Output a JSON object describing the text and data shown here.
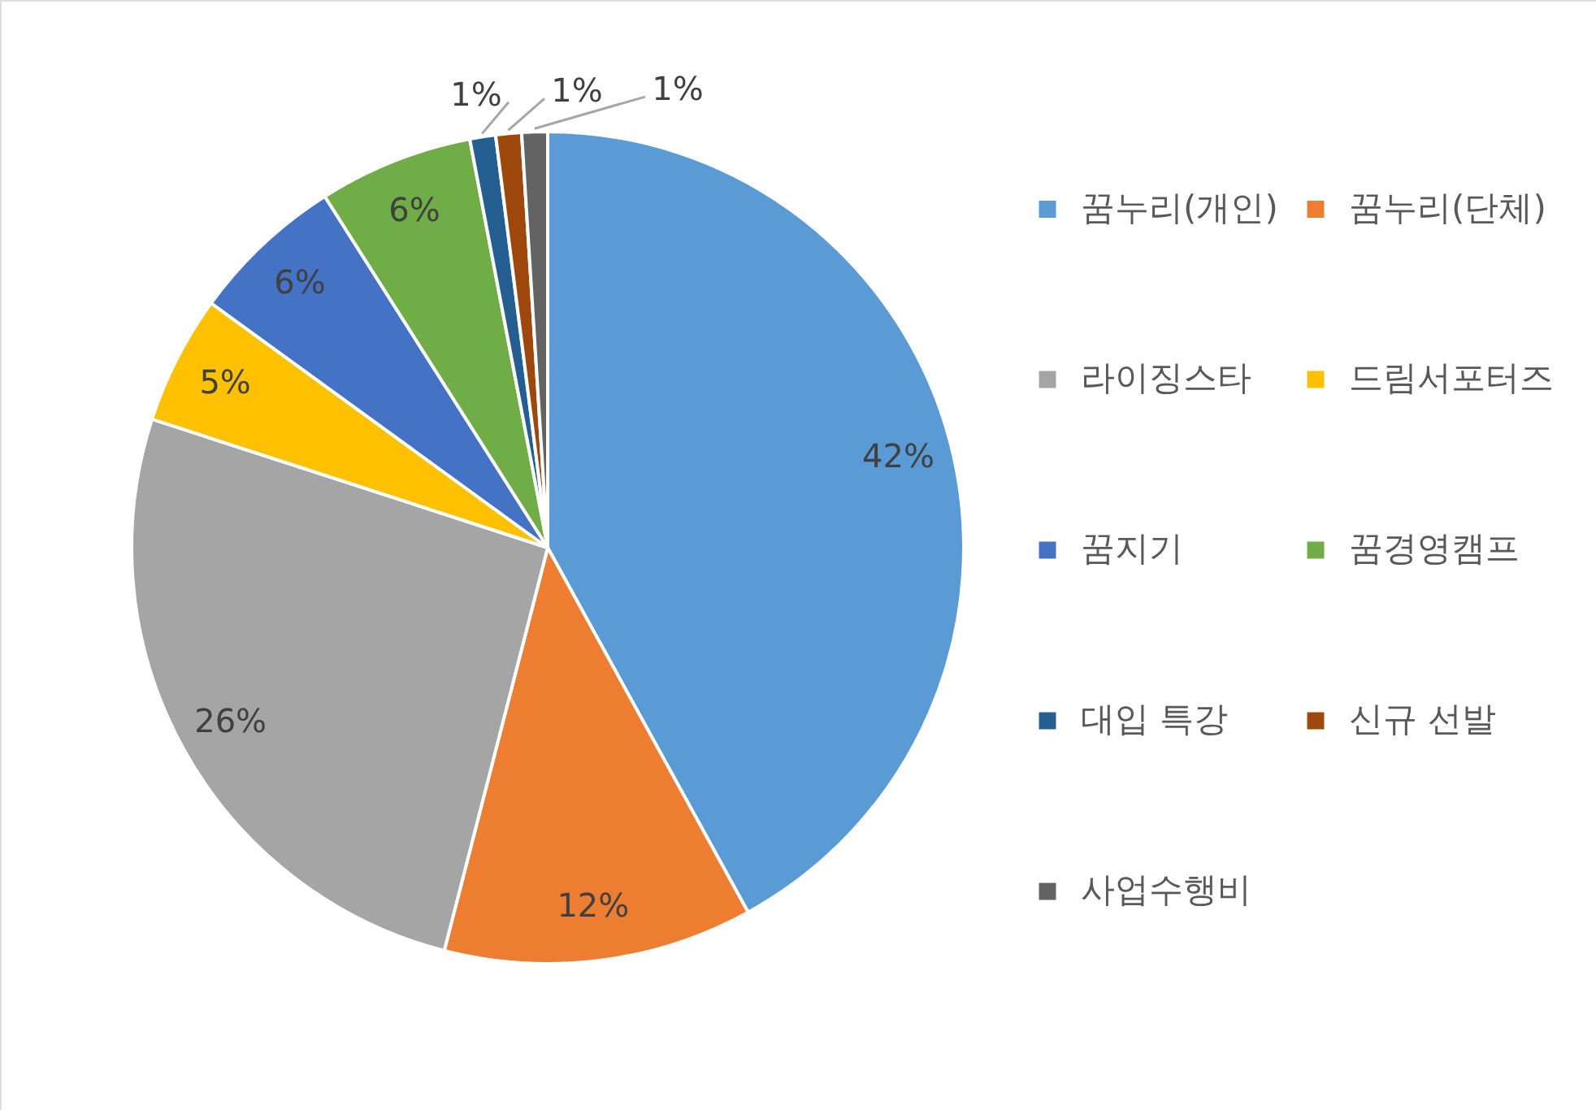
{
  "chart_data": {
    "type": "pie",
    "categories": [
      "꿈누리(개인)",
      "꿈누리(단체)",
      "라이징스타",
      "드림서포터즈",
      "꿈지기",
      "꿈경영캠프",
      "대입 특강",
      "신규 선발",
      "사업수행비"
    ],
    "values": [
      42,
      12,
      26,
      5,
      6,
      6,
      1,
      1,
      1
    ],
    "colors": [
      "#5b9bd5",
      "#ed7d31",
      "#a5a5a5",
      "#ffc000",
      "#4472c4",
      "#70ad47",
      "#255e91",
      "#9e480e",
      "#636363"
    ],
    "value_labels": [
      "42%",
      "12%",
      "26%",
      "5%",
      "6%",
      "6%",
      "1%",
      "1%",
      "1%"
    ],
    "legend": "right"
  }
}
